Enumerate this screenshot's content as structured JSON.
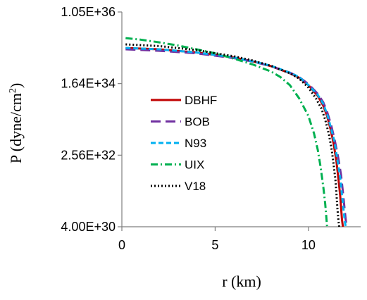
{
  "chart_data": {
    "type": "line",
    "xlabel": "r (km)",
    "ylabel": "P (dyne/cm2)",
    "ylabel_base": "P (dyne/cm",
    "ylabel_sup": "2",
    "ylabel_end": ")",
    "xlim": [
      0,
      12.8
    ],
    "ylim": [
      4e+30,
      1.05e+36
    ],
    "yscale": "log",
    "xticks": [
      {
        "value": 0,
        "label": "0"
      },
      {
        "value": 5,
        "label": "5"
      },
      {
        "value": 10,
        "label": "10"
      }
    ],
    "yticks": [
      {
        "value": 1.05e+36,
        "label": "1.05E+36"
      },
      {
        "value": 1.64e+34,
        "label": "1.64E+34"
      },
      {
        "value": 2.56e+32,
        "label": "2.56E+32"
      },
      {
        "value": 4e+30,
        "label": "4.00E+30"
      }
    ],
    "grid": false,
    "legend_position": "left-center",
    "series": [
      {
        "name": "DBHF",
        "color": "#c00000",
        "dash": "solid",
        "x": [
          0.2,
          2,
          4,
          6,
          7,
          8,
          9,
          9.5,
          10,
          10.5,
          10.8,
          11.0,
          11.2,
          11.35,
          11.5,
          11.6,
          11.7,
          11.75,
          11.8,
          11.85
        ],
        "y": [
          1.3e+35,
          1.2e+35,
          1e+35,
          7.5e+34,
          6e+34,
          4.5e+34,
          3e+34,
          2.3e+34,
          1.5e+34,
          8e+33,
          4.5e+33,
          2.5e+33,
          1.1e+33,
          5e+32,
          1.8e+32,
          7e+31,
          2.5e+31,
          1.2e+31,
          6e+30,
          4e+30
        ]
      },
      {
        "name": "BOB",
        "color": "#7030a0",
        "dash": "long-dash",
        "x": [
          0.2,
          2,
          4,
          6,
          7,
          8,
          9,
          9.5,
          10,
          10.5,
          10.8,
          11.0,
          11.2,
          11.4,
          11.6,
          11.75,
          11.85,
          11.95,
          12.0,
          12.05
        ],
        "y": [
          1.2e+35,
          1.1e+35,
          9.5e+34,
          7.2e+34,
          5.9e+34,
          4.5e+34,
          3.1e+34,
          2.4e+34,
          1.6e+34,
          9e+33,
          5.5e+33,
          3.2e+33,
          1.6e+33,
          6.5e+32,
          2.2e+32,
          8e+31,
          3e+31,
          1e+31,
          6e+30,
          4e+30
        ]
      },
      {
        "name": "N93",
        "color": "#00b0f0",
        "dash": "short-dash",
        "x": [
          0.2,
          2,
          4,
          6,
          7,
          8,
          9,
          9.5,
          10,
          10.5,
          10.8,
          11.0,
          11.2,
          11.4,
          11.55,
          11.7,
          11.8,
          11.9,
          11.95,
          12.0
        ],
        "y": [
          1.3e+35,
          1.2e+35,
          1e+35,
          7.5e+34,
          6e+34,
          4.6e+34,
          3.1e+34,
          2.4e+34,
          1.5e+34,
          8.5e+33,
          5e+33,
          2.8e+33,
          1.3e+33,
          5.5e+32,
          2e+32,
          7e+31,
          2.5e+31,
          9e+30,
          5.5e+30,
          4e+30
        ]
      },
      {
        "name": "UIX",
        "color": "#00b050",
        "dash": "dash-dot",
        "x": [
          0.2,
          1,
          2,
          3,
          4,
          5,
          6,
          7,
          8,
          8.5,
          9,
          9.5,
          10,
          10.3,
          10.5,
          10.65,
          10.8,
          10.9,
          10.95,
          11.0
        ],
        "y": [
          2.3e+35,
          2.1e+35,
          1.8e+35,
          1.5e+35,
          1.2e+35,
          9.5e+34,
          7e+34,
          5e+34,
          3.3e+34,
          2.4e+34,
          1.5e+34,
          7e+33,
          2.5e+33,
          9e+32,
          3.5e+32,
          1.3e+32,
          4e+31,
          1.5e+31,
          8e+30,
          4e+30
        ]
      },
      {
        "name": "V18",
        "color": "#000000",
        "dash": "dotted",
        "x": [
          0.2,
          2,
          4,
          6,
          7,
          8,
          9,
          9.5,
          10,
          10.4,
          10.7,
          10.9,
          11.1,
          11.25,
          11.35,
          11.45,
          11.5,
          11.55,
          11.6,
          11.65
        ],
        "y": [
          1.6e+35,
          1.45e+35,
          1.15e+35,
          8e+34,
          6.3e+34,
          4.6e+34,
          3e+34,
          2.2e+34,
          1.3e+34,
          7e+33,
          3.8e+33,
          2e+33,
          8.5e+32,
          3.5e+32,
          1.5e+32,
          6e+31,
          2.8e+31,
          1.2e+31,
          6.5e+30,
          4e+30
        ]
      }
    ]
  }
}
